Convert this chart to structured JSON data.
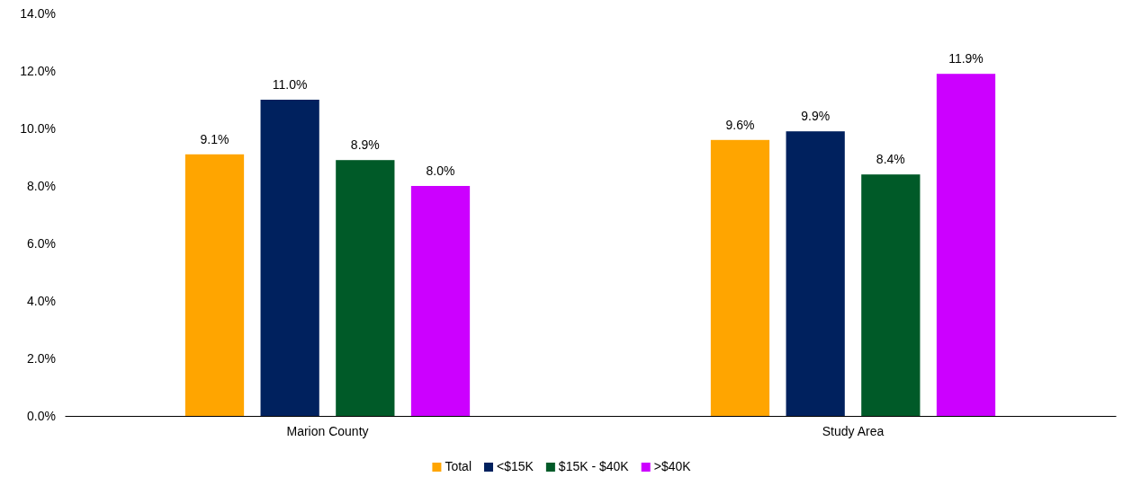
{
  "chart_data": {
    "type": "bar",
    "categories": [
      "Marion County",
      "Study Area"
    ],
    "series": [
      {
        "name": "Total",
        "color": "#ffa500",
        "values": [
          9.1,
          9.6
        ],
        "value_labels": [
          "9.1%",
          "9.6%"
        ]
      },
      {
        "name": "<$15K",
        "color": "#00215e",
        "values": [
          11.0,
          9.9
        ],
        "value_labels": [
          "11.0%",
          "9.9%"
        ]
      },
      {
        "name": "$15K - $40K",
        "color": "#005a28",
        "values": [
          8.9,
          8.4
        ],
        "value_labels": [
          "8.9%",
          "8.4%"
        ]
      },
      {
        "name": ">$40K",
        "color": "#cc00ff",
        "values": [
          8.0,
          11.9
        ],
        "value_labels": [
          "8.0%",
          "11.9%"
        ]
      }
    ],
    "ylim": [
      0,
      14
    ],
    "yticks": [
      {
        "value": 0,
        "label": "0.0%"
      },
      {
        "value": 2,
        "label": "2.0%"
      },
      {
        "value": 4,
        "label": "4.0%"
      },
      {
        "value": 6,
        "label": "6.0%"
      },
      {
        "value": 8,
        "label": "8.0%"
      },
      {
        "value": 10,
        "label": "10.0%"
      },
      {
        "value": 12,
        "label": "12.0%"
      },
      {
        "value": 14,
        "label": "14.0%"
      }
    ],
    "grid": false,
    "legend": "bottom"
  }
}
